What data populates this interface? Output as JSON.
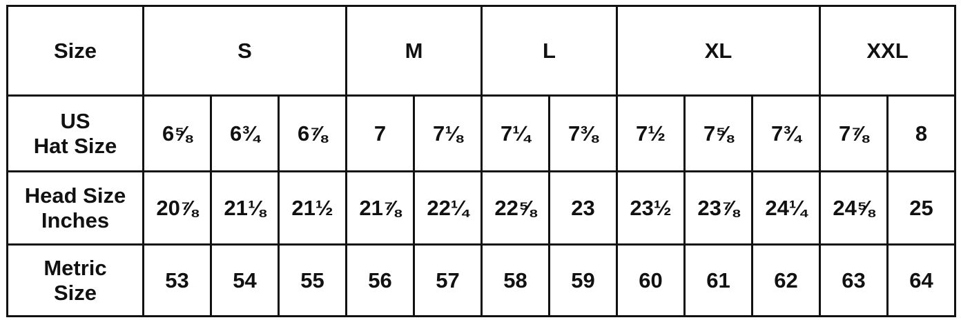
{
  "table": {
    "header": {
      "label": "Size",
      "groups": [
        {
          "label": "S",
          "span": 3
        },
        {
          "label": "M",
          "span": 2
        },
        {
          "label": "L",
          "span": 2
        },
        {
          "label": "XL",
          "span": 3
        },
        {
          "label": "XXL",
          "span": 2
        }
      ]
    },
    "rows": [
      {
        "label_lines": [
          "US",
          "Hat Size"
        ],
        "values": [
          "6⅝",
          "6¾",
          "6⅞",
          "7",
          "7⅛",
          "7¼",
          "7⅜",
          "7½",
          "7⅝",
          "7¾",
          "7⅞",
          "8"
        ]
      },
      {
        "label_lines": [
          "Head Size",
          "Inches"
        ],
        "values": [
          "20⅞",
          "21⅛",
          "21½",
          "21⅞",
          "22¼",
          "22⅝",
          "23",
          "23½",
          "23⅞",
          "24¼",
          "24⅝",
          "25"
        ]
      },
      {
        "label_lines": [
          "Metric",
          "Size"
        ],
        "values": [
          "53",
          "54",
          "55",
          "56",
          "57",
          "58",
          "59",
          "60",
          "61",
          "62",
          "63",
          "64"
        ]
      }
    ]
  }
}
